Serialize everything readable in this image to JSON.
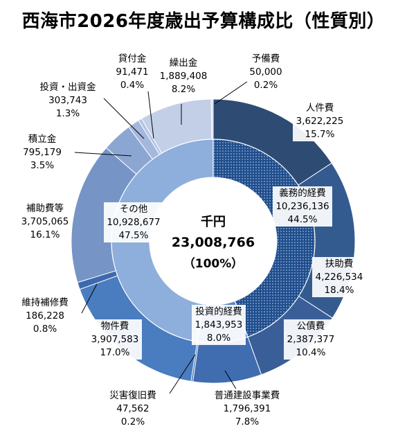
{
  "chart_data": {
    "type": "doughnut",
    "title": "西海市2026年度歳出予算構成比（性質別）",
    "unit": "千円",
    "center": {
      "unit": "千円",
      "total": "23,008,766",
      "percent": "（100%）"
    },
    "outer_ring": [
      {
        "name": "人件費",
        "value": 3622225,
        "value_label": "3,622,225",
        "percent": "15.7%",
        "color": "#2e4b73"
      },
      {
        "name": "扶助費",
        "value": 4226534,
        "value_label": "4,226,534",
        "percent": "18.4%",
        "color": "#345b8f"
      },
      {
        "name": "公債費",
        "value": 2387377,
        "value_label": "2,387,377",
        "percent": "10.4%",
        "color": "#3a5f98"
      },
      {
        "name": "普通建設事業費",
        "value": 1796391,
        "value_label": "1,796,391",
        "percent": "7.8%",
        "color": "#3f6db0"
      },
      {
        "name": "災害復旧費",
        "value": 47562,
        "value_label": "47,562",
        "percent": "0.2%",
        "color": "#4470b5"
      },
      {
        "name": "物件費",
        "value": 3907583,
        "value_label": "3,907,583",
        "percent": "17.0%",
        "color": "#4a7cc0"
      },
      {
        "name": "維持補修費",
        "value": 186228,
        "value_label": "186,228",
        "percent": "0.8%",
        "color": "#3d6aad"
      },
      {
        "name": "補助費等",
        "value": 3705065,
        "value_label": "3,705,065",
        "percent": "16.1%",
        "color": "#7694c6"
      },
      {
        "name": "積立金",
        "value": 795179,
        "value_label": "795,179",
        "percent": "3.5%",
        "color": "#8ca6d2"
      },
      {
        "name": "投資・出資金",
        "value": 303743,
        "value_label": "303,743",
        "percent": "1.3%",
        "color": "#a4b7dc"
      },
      {
        "name": "貸付金",
        "value": 91471,
        "value_label": "91,471",
        "percent": "0.4%",
        "color": "#b3c4e3"
      },
      {
        "name": "繰出金",
        "value": 1889408,
        "value_label": "1,889,408",
        "percent": "8.2%",
        "color": "#c3cfe7"
      },
      {
        "name": "予備費",
        "value": 50000,
        "value_label": "50,000",
        "percent": "0.2%",
        "color": "#d7deee"
      }
    ],
    "inner_ring": [
      {
        "name": "義務的経費",
        "value": 10236136,
        "value_label": "10,236,136",
        "percent": "44.5%",
        "color": "#1f4e8c",
        "pattern": "dots"
      },
      {
        "name": "投資的経費",
        "value": 1843953,
        "value_label": "1,843,953",
        "percent": "8.0%",
        "color": "#5f86c6"
      },
      {
        "name": "その他",
        "value": 10928677,
        "value_label": "10,928,677",
        "percent": "47.5%",
        "color": "#8eaedb"
      }
    ]
  }
}
